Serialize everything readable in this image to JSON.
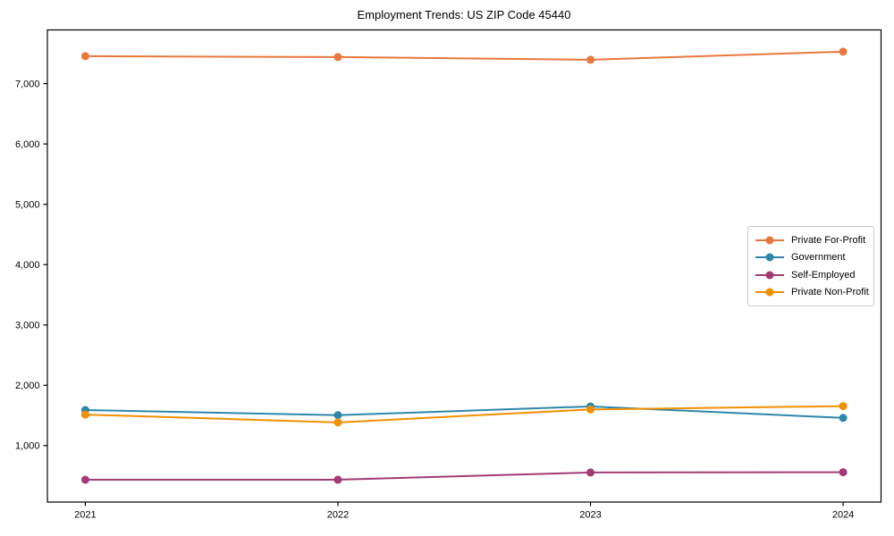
{
  "chart_data": {
    "type": "line",
    "title": "Employment Trends: US ZIP Code 45440",
    "categories": [
      "2021",
      "2022",
      "2023",
      "2024"
    ],
    "series": [
      {
        "name": "Private For-Profit",
        "color": "#e8773d",
        "values": [
          7455,
          7440,
          7395,
          7530
        ]
      },
      {
        "name": "Government",
        "color": "#2e86ab",
        "values": [
          1590,
          1505,
          1650,
          1460
        ]
      },
      {
        "name": "Self-Employed",
        "color": "#a23b72",
        "values": [
          435,
          435,
          555,
          560
        ]
      },
      {
        "name": "Private Non-Profit",
        "color": "#f18f01",
        "values": [
          1515,
          1385,
          1600,
          1655
        ]
      }
    ],
    "xlabel": "",
    "ylabel": "",
    "ylim": [
      65,
      7890
    ],
    "yticks": [
      1000,
      2000,
      3000,
      4000,
      5000,
      6000,
      7000
    ],
    "ytick_labels": [
      "1,000",
      "2,000",
      "3,000",
      "4,000",
      "5,000",
      "6,000",
      "7,000"
    ],
    "grid": false,
    "legend": {
      "position": "center-right",
      "entries": [
        "Private For-Profit",
        "Government",
        "Self-Employed",
        "Private Non-Profit"
      ]
    },
    "style": {
      "axis_color": "#000000",
      "text_color": "#000000",
      "background": "#ffffff",
      "line_width": 2,
      "marker_radius": 4.5
    }
  }
}
